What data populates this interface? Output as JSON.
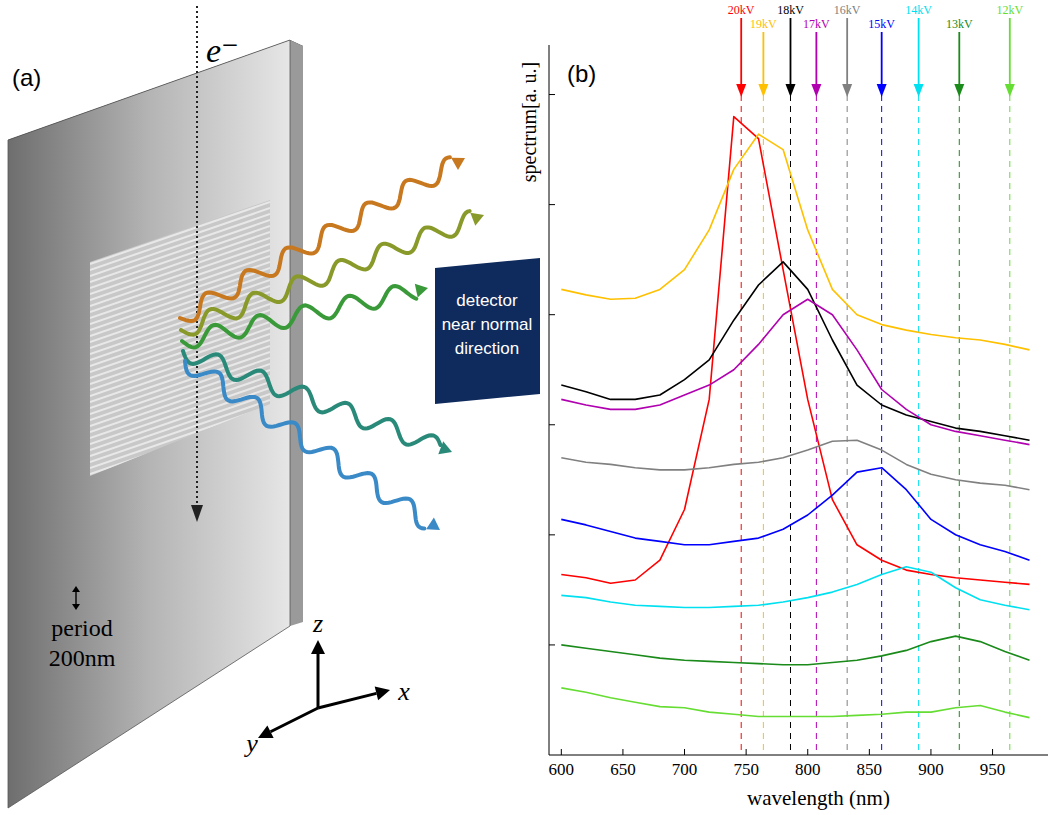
{
  "diagram": {
    "panel_label": "(a)",
    "electron_label": "e⁻",
    "period_label": [
      "period",
      "200nm"
    ],
    "detector_label": [
      "detector",
      "near normal",
      "direction"
    ],
    "axes": {
      "z": "z",
      "x": "x",
      "y": "y"
    }
  },
  "chart_data": {
    "type": "line",
    "panel_label": "(b)",
    "x_label": "wavelength (nm)",
    "y_label": "spectrum[a. u.]",
    "x": [
      600,
      620,
      640,
      660,
      680,
      700,
      720,
      740,
      760,
      780,
      800,
      820,
      840,
      860,
      880,
      900,
      920,
      940,
      960,
      980
    ],
    "xlim": [
      590,
      995
    ],
    "xticks": [
      600,
      650,
      700,
      750,
      800,
      850,
      900,
      950
    ],
    "ylim": [
      0,
      6.45
    ],
    "yticks": [
      1,
      2,
      3,
      4,
      5,
      6
    ],
    "tick_labels": "x",
    "grid": false,
    "series": [
      {
        "name": "20kV",
        "color": "#ff0000",
        "peak": 746,
        "values": [
          1.64,
          1.61,
          1.56,
          1.59,
          1.77,
          2.23,
          3.23,
          5.8,
          5.6,
          4.41,
          3.23,
          2.32,
          1.91,
          1.77,
          1.68,
          1.64,
          1.61,
          1.59,
          1.57,
          1.55
        ]
      },
      {
        "name": "19kV",
        "color": "#ffc000",
        "peak": 764,
        "values": [
          4.23,
          4.18,
          4.14,
          4.15,
          4.23,
          4.41,
          4.77,
          5.32,
          5.64,
          5.5,
          4.77,
          4.23,
          4.0,
          3.91,
          3.86,
          3.82,
          3.79,
          3.77,
          3.73,
          3.68
        ]
      },
      {
        "name": "18kV",
        "color": "#000000",
        "peak": 786,
        "values": [
          3.36,
          3.3,
          3.23,
          3.23,
          3.27,
          3.41,
          3.59,
          3.95,
          4.27,
          4.48,
          4.23,
          3.77,
          3.36,
          3.18,
          3.09,
          3.03,
          2.97,
          2.94,
          2.9,
          2.86
        ]
      },
      {
        "name": "17kV",
        "color": "#b000b0",
        "peak": 807,
        "values": [
          3.23,
          3.18,
          3.14,
          3.14,
          3.18,
          3.27,
          3.36,
          3.5,
          3.73,
          4.0,
          4.14,
          4.0,
          3.68,
          3.32,
          3.14,
          3.0,
          2.94,
          2.9,
          2.86,
          2.82
        ]
      },
      {
        "name": "16kV",
        "color": "#808080",
        "peak": 832,
        "values": [
          2.7,
          2.66,
          2.64,
          2.61,
          2.59,
          2.59,
          2.61,
          2.64,
          2.66,
          2.7,
          2.77,
          2.85,
          2.86,
          2.77,
          2.64,
          2.55,
          2.5,
          2.47,
          2.45,
          2.41
        ]
      },
      {
        "name": "15kV",
        "color": "#0000ff",
        "peak": 860,
        "values": [
          2.14,
          2.09,
          2.03,
          1.97,
          1.94,
          1.91,
          1.91,
          1.94,
          1.97,
          2.05,
          2.18,
          2.36,
          2.57,
          2.61,
          2.41,
          2.14,
          2.0,
          1.91,
          1.85,
          1.77
        ]
      },
      {
        "name": "14kV",
        "color": "#00e0f0",
        "peak": 890,
        "values": [
          1.45,
          1.43,
          1.39,
          1.36,
          1.35,
          1.34,
          1.34,
          1.35,
          1.36,
          1.39,
          1.43,
          1.48,
          1.55,
          1.64,
          1.71,
          1.66,
          1.52,
          1.41,
          1.36,
          1.32
        ]
      },
      {
        "name": "13kV",
        "color": "#1a8a1a",
        "peak": 923,
        "values": [
          1.0,
          0.97,
          0.94,
          0.91,
          0.88,
          0.86,
          0.85,
          0.84,
          0.83,
          0.82,
          0.82,
          0.84,
          0.86,
          0.9,
          0.95,
          1.03,
          1.08,
          1.03,
          0.94,
          0.86
        ]
      },
      {
        "name": "12kV",
        "color": "#66dd33",
        "peak": 964,
        "values": [
          0.61,
          0.57,
          0.52,
          0.48,
          0.44,
          0.43,
          0.39,
          0.37,
          0.35,
          0.35,
          0.35,
          0.35,
          0.36,
          0.37,
          0.39,
          0.39,
          0.43,
          0.45,
          0.39,
          0.34
        ]
      }
    ]
  }
}
